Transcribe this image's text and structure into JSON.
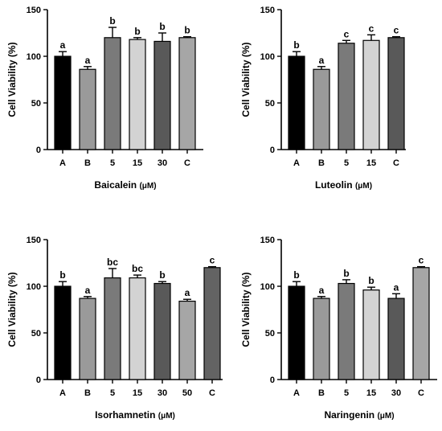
{
  "chart_data": [
    {
      "type": "bar",
      "xlabel": "Baicalein",
      "xunit": "(μM)",
      "ylabel": "Cell Viability (%)",
      "ylim": [
        0,
        150
      ],
      "yticks": [
        0,
        50,
        100,
        150
      ],
      "categories": [
        "A",
        "B",
        "5",
        "15",
        "30",
        "C"
      ],
      "values": [
        100,
        86,
        120,
        118,
        116,
        120
      ],
      "errors": [
        5,
        3,
        11,
        2,
        9,
        1
      ],
      "significance": [
        "a",
        "a",
        "b",
        "b",
        "b",
        "b"
      ],
      "bar_colors": [
        "#000000",
        "#9a9a9a",
        "#7a7a7a",
        "#d3d3d3",
        "#595959",
        "#a6a6a6"
      ]
    },
    {
      "type": "bar",
      "xlabel": "Luteolin",
      "xunit": "(μM)",
      "ylabel": "Cell Viability (%)",
      "ylim": [
        0,
        150
      ],
      "yticks": [
        0,
        50,
        100,
        150
      ],
      "categories": [
        "A",
        "B",
        "5",
        "15",
        "C"
      ],
      "values": [
        100,
        86,
        114,
        117,
        120
      ],
      "errors": [
        5,
        3,
        3,
        6,
        1
      ],
      "significance": [
        "b",
        "a",
        "c",
        "c",
        "c"
      ],
      "bar_colors": [
        "#000000",
        "#9a9a9a",
        "#7a7a7a",
        "#d3d3d3",
        "#595959"
      ]
    },
    {
      "type": "bar",
      "xlabel": "Isorhamnetin",
      "xunit": "(μM)",
      "ylabel": "Cell Viability (%)",
      "ylim": [
        0,
        150
      ],
      "yticks": [
        0,
        50,
        100,
        150
      ],
      "categories": [
        "A",
        "B",
        "5",
        "15",
        "30",
        "50",
        "C"
      ],
      "values": [
        100,
        87,
        109,
        109,
        103,
        84,
        120
      ],
      "errors": [
        5,
        2,
        10,
        3,
        2,
        2,
        1
      ],
      "significance": [
        "b",
        "a",
        "bc",
        "bc",
        "b",
        "a",
        "c"
      ],
      "bar_colors": [
        "#000000",
        "#9a9a9a",
        "#7a7a7a",
        "#d3d3d3",
        "#595959",
        "#a6a6a6",
        "#636363"
      ]
    },
    {
      "type": "bar",
      "xlabel": "Naringenin",
      "xunit": "(μM)",
      "ylabel": "Cell Viability (%)",
      "ylim": [
        0,
        150
      ],
      "yticks": [
        0,
        50,
        100,
        150
      ],
      "categories": [
        "A",
        "B",
        "5",
        "15",
        "30",
        "C"
      ],
      "values": [
        100,
        87,
        103,
        96,
        87,
        120
      ],
      "errors": [
        5,
        2,
        4,
        3,
        5,
        1
      ],
      "significance": [
        "b",
        "a",
        "b",
        "b",
        "a",
        "c"
      ],
      "bar_colors": [
        "#000000",
        "#9a9a9a",
        "#7a7a7a",
        "#d3d3d3",
        "#595959",
        "#a6a6a6"
      ]
    }
  ]
}
